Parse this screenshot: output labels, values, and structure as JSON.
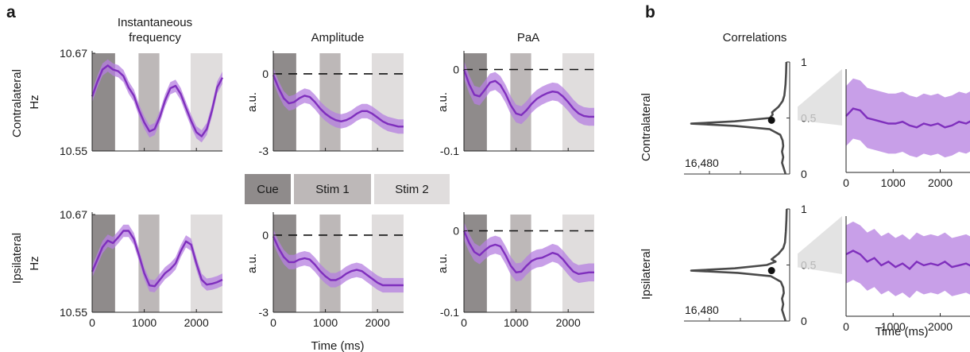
{
  "panel_a": {
    "letter": "a",
    "col_titles": [
      "Instantaneous\nfrequency",
      "Amplitude",
      "PaA"
    ],
    "row_labels": [
      "Contralateral",
      "Ipsilateral"
    ],
    "xlabel": "Time (ms)",
    "legend": [
      {
        "label": "Cue",
        "color": "#8f8b8b"
      },
      {
        "label": "Stim 1",
        "color": "#bdb8b8"
      },
      {
        "label": "Stim 2",
        "color": "#e0dddd"
      }
    ]
  },
  "panel_b": {
    "letter": "b",
    "title": "Correlations",
    "row_labels": [
      "Contralateral",
      "Ipsilateral"
    ],
    "xlabel": "Time (ms)"
  },
  "colors": {
    "line": "#7f2fbd",
    "band": "#b57fe0",
    "cue": "#8f8b8b",
    "stim1": "#bdb8b8",
    "stim2": "#e0dddd",
    "hist": "#4a4a4a"
  },
  "shading": [
    {
      "name": "Cue",
      "from": 0,
      "to": 440
    },
    {
      "name": "Stim 1",
      "from": 890,
      "to": 1290
    },
    {
      "name": "Stim 2",
      "from": 1890,
      "to": 2500
    }
  ],
  "chart_data": [
    {
      "type": "line",
      "row": "Contralateral",
      "col": "Instantaneous frequency",
      "ylabel": "Hz",
      "ylim": [
        10.55,
        10.67
      ],
      "yticks": [
        "10.67",
        "10.55"
      ],
      "xlim": [
        0,
        2500
      ],
      "xticks": [],
      "zero_line": false,
      "series": [
        {
          "x": [
            0,
            100,
            200,
            300,
            400,
            500,
            600,
            700,
            800,
            900,
            1000,
            1100,
            1200,
            1300,
            1400,
            1500,
            1600,
            1700,
            1800,
            1900,
            2000,
            2100,
            2200,
            2300,
            2400,
            2500
          ],
          "y": [
            10.617,
            10.635,
            10.65,
            10.655,
            10.65,
            10.648,
            10.642,
            10.628,
            10.618,
            10.6,
            10.585,
            10.574,
            10.577,
            10.592,
            10.612,
            10.627,
            10.63,
            10.62,
            10.603,
            10.587,
            10.573,
            10.568,
            10.577,
            10.6,
            10.628,
            10.64
          ],
          "err": 0.0075
        }
      ]
    },
    {
      "type": "line",
      "row": "Contralateral",
      "col": "Amplitude",
      "ylabel": "a.u.",
      "ylim": [
        -3,
        0.8
      ],
      "yticks": [
        "0",
        "-3"
      ],
      "xlim": [
        0,
        2500
      ],
      "xticks": [],
      "zero_line": true,
      "series": [
        {
          "x": [
            0,
            100,
            200,
            300,
            400,
            500,
            600,
            700,
            800,
            900,
            1000,
            1100,
            1200,
            1300,
            1400,
            1500,
            1600,
            1700,
            1800,
            1900,
            2000,
            2100,
            2200,
            2300,
            2400,
            2500
          ],
          "y": [
            -0.05,
            -0.55,
            -0.95,
            -1.15,
            -1.1,
            -0.95,
            -0.85,
            -0.9,
            -1.1,
            -1.35,
            -1.55,
            -1.7,
            -1.8,
            -1.85,
            -1.8,
            -1.7,
            -1.55,
            -1.45,
            -1.45,
            -1.55,
            -1.7,
            -1.85,
            -1.95,
            -2.0,
            -2.05,
            -2.05
          ],
          "err": 0.28
        }
      ]
    },
    {
      "type": "line",
      "row": "Contralateral",
      "col": "PaA",
      "ylabel": "a.u.",
      "ylim": [
        -0.1,
        0.02
      ],
      "yticks": [
        "0",
        "-0.1"
      ],
      "xlim": [
        0,
        2500
      ],
      "xticks": [],
      "zero_line": true,
      "series": [
        {
          "x": [
            0,
            100,
            200,
            300,
            400,
            500,
            600,
            700,
            800,
            900,
            1000,
            1100,
            1200,
            1300,
            1400,
            1500,
            1600,
            1700,
            1800,
            1900,
            2000,
            2100,
            2200,
            2300,
            2400,
            2500
          ],
          "y": [
            0.0,
            -0.018,
            -0.031,
            -0.033,
            -0.025,
            -0.016,
            -0.014,
            -0.019,
            -0.03,
            -0.044,
            -0.054,
            -0.056,
            -0.05,
            -0.042,
            -0.036,
            -0.032,
            -0.029,
            -0.027,
            -0.028,
            -0.033,
            -0.04,
            -0.048,
            -0.054,
            -0.057,
            -0.058,
            -0.058
          ],
          "err": 0.011
        }
      ]
    },
    {
      "type": "line",
      "row": "Ipsilateral",
      "col": "Instantaneous frequency",
      "ylabel": "Hz",
      "ylim": [
        10.55,
        10.67
      ],
      "yticks": [
        "10.67",
        "10.55"
      ],
      "xlim": [
        0,
        2500
      ],
      "xticks": [
        "0",
        "1000",
        "2000"
      ],
      "zero_line": false,
      "series": [
        {
          "x": [
            0,
            100,
            200,
            300,
            400,
            500,
            600,
            700,
            800,
            900,
            1000,
            1100,
            1200,
            1300,
            1400,
            1500,
            1600,
            1700,
            1800,
            1900,
            2000,
            2100,
            2200,
            2300,
            2400,
            2500
          ],
          "y": [
            10.6,
            10.615,
            10.63,
            10.638,
            10.635,
            10.642,
            10.65,
            10.65,
            10.64,
            10.62,
            10.598,
            10.583,
            10.582,
            10.59,
            10.598,
            10.603,
            10.61,
            10.625,
            10.637,
            10.633,
            10.61,
            10.59,
            10.584,
            10.585,
            10.587,
            10.59
          ],
          "err": 0.0075
        }
      ]
    },
    {
      "type": "line",
      "row": "Ipsilateral",
      "col": "Amplitude",
      "ylabel": "a.u.",
      "ylim": [
        -3,
        0.8
      ],
      "yticks": [
        "0",
        "-3"
      ],
      "xlim": [
        0,
        2500
      ],
      "xticks": [
        "0",
        "1000",
        "2000"
      ],
      "zero_line": true,
      "series": [
        {
          "x": [
            0,
            100,
            200,
            300,
            400,
            500,
            600,
            700,
            800,
            900,
            1000,
            1100,
            1200,
            1300,
            1400,
            1500,
            1600,
            1700,
            1800,
            1900,
            2000,
            2100,
            2200,
            2300,
            2400,
            2500
          ],
          "y": [
            -0.05,
            -0.5,
            -0.85,
            -1.05,
            -1.05,
            -0.95,
            -0.9,
            -0.95,
            -1.15,
            -1.4,
            -1.6,
            -1.75,
            -1.75,
            -1.65,
            -1.5,
            -1.4,
            -1.35,
            -1.4,
            -1.55,
            -1.7,
            -1.85,
            -1.95,
            -1.95,
            -1.95,
            -1.95,
            -1.95
          ],
          "err": 0.28
        }
      ]
    },
    {
      "type": "line",
      "row": "Ipsilateral",
      "col": "PaA",
      "ylabel": "a.u.",
      "ylim": [
        -0.1,
        0.02
      ],
      "yticks": [
        "0",
        "-0.1"
      ],
      "xlim": [
        0,
        2500
      ],
      "xticks": [
        "0",
        "1000",
        "2000"
      ],
      "zero_line": true,
      "series": [
        {
          "x": [
            0,
            100,
            200,
            300,
            400,
            500,
            600,
            700,
            800,
            900,
            1000,
            1100,
            1200,
            1300,
            1400,
            1500,
            1600,
            1700,
            1800,
            1900,
            2000,
            2100,
            2200,
            2300,
            2400,
            2500
          ],
          "y": [
            0.0,
            -0.015,
            -0.026,
            -0.03,
            -0.024,
            -0.019,
            -0.017,
            -0.019,
            -0.03,
            -0.043,
            -0.051,
            -0.05,
            -0.043,
            -0.037,
            -0.034,
            -0.033,
            -0.03,
            -0.027,
            -0.029,
            -0.035,
            -0.043,
            -0.05,
            -0.053,
            -0.052,
            -0.051,
            -0.051
          ],
          "err": 0.011
        }
      ]
    },
    {
      "type": "histogram",
      "row": "Contralateral",
      "col": "Correlations distribution",
      "orientation": "horizontal-counts",
      "ylim": [
        0,
        1
      ],
      "yticks": [
        "1",
        "0.5",
        "0"
      ],
      "count_max_label": "16,480",
      "bins": [
        0,
        0.05,
        0.1,
        0.15,
        0.2,
        0.25,
        0.3,
        0.35,
        0.4,
        0.43,
        0.45,
        0.47,
        0.5,
        0.53,
        0.55,
        0.6,
        0.65,
        0.7,
        0.8,
        0.9,
        1.0
      ],
      "counts": [
        300,
        600,
        900,
        700,
        900,
        700,
        800,
        1200,
        3000,
        9000,
        16480,
        9000,
        3000,
        2500,
        2600,
        1500,
        800,
        500,
        300,
        200,
        150
      ],
      "point": {
        "count": 2700,
        "value": 0.48
      }
    },
    {
      "type": "line",
      "row": "Contralateral",
      "col": "Correlations time course",
      "ylim": [
        0,
        1
      ],
      "xlim": [
        0,
        2700
      ],
      "xticks": [
        "0",
        "1000",
        "2000"
      ],
      "series": [
        {
          "x": [
            0,
            150,
            300,
            450,
            600,
            750,
            900,
            1050,
            1200,
            1350,
            1500,
            1650,
            1800,
            1950,
            2100,
            2250,
            2400,
            2550,
            2700
          ],
          "y": [
            0.6,
            0.64,
            0.63,
            0.59,
            0.58,
            0.57,
            0.56,
            0.56,
            0.57,
            0.55,
            0.54,
            0.56,
            0.55,
            0.56,
            0.54,
            0.55,
            0.57,
            0.56,
            0.58
          ],
          "err": 0.16
        }
      ]
    },
    {
      "type": "histogram",
      "row": "Ipsilateral",
      "col": "Correlations distribution",
      "orientation": "horizontal-counts",
      "ylim": [
        0,
        1
      ],
      "yticks": [
        "1",
        "0.5",
        "0"
      ],
      "count_max_label": "16,480",
      "bins": [
        0,
        0.05,
        0.1,
        0.15,
        0.2,
        0.25,
        0.3,
        0.35,
        0.4,
        0.43,
        0.45,
        0.47,
        0.5,
        0.53,
        0.55,
        0.6,
        0.65,
        0.7,
        0.8,
        0.9,
        1.0
      ],
      "counts": [
        300,
        600,
        900,
        700,
        900,
        600,
        700,
        1100,
        2800,
        8500,
        16480,
        9000,
        3500,
        2000,
        2700,
        1500,
        700,
        400,
        250,
        150,
        100
      ],
      "point": {
        "count": 2700,
        "value": 0.45
      }
    },
    {
      "type": "line",
      "row": "Ipsilateral",
      "col": "Correlations time course",
      "ylim": [
        0,
        1
      ],
      "xlim": [
        0,
        2700
      ],
      "xticks": [
        "0",
        "1000",
        "2000"
      ],
      "series": [
        {
          "x": [
            0,
            150,
            300,
            450,
            600,
            750,
            900,
            1050,
            1200,
            1350,
            1500,
            1650,
            1800,
            1950,
            2100,
            2250,
            2400,
            2550,
            2700
          ],
          "y": [
            0.64,
            0.66,
            0.64,
            0.6,
            0.62,
            0.58,
            0.6,
            0.57,
            0.59,
            0.56,
            0.6,
            0.58,
            0.59,
            0.58,
            0.6,
            0.57,
            0.58,
            0.59,
            0.57
          ],
          "err": 0.16
        }
      ]
    }
  ]
}
